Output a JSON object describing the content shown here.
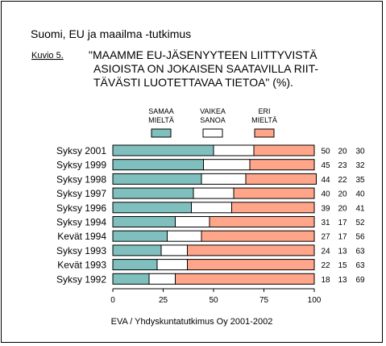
{
  "title": "Suomi, EU ja maailma -tutkimus",
  "figure_label": "Kuvio 5.",
  "heading_lines": [
    "\"MAAMME EU-JÄSENYYTEEN LIITTYVISTÄ",
    "ASIOISTA ON JOKAISEN SAATAVILLA RIIT-",
    "TÄVÄSTI LUOTETTAVAA TIETOA\" (%)."
  ],
  "source": "EVA / Yhdyskuntatutkimus Oy 2001-2002",
  "colors": {
    "agree": "#7fbfbe",
    "neutral": "#ffffff",
    "disagree": "#ffa58a"
  },
  "legend": [
    {
      "lines": [
        "SAMAA",
        "MIELTÄ"
      ],
      "color": "#7fbfbe"
    },
    {
      "lines": [
        "VAIKEA",
        "SANOA"
      ],
      "color": "#ffffff"
    },
    {
      "lines": [
        "ERI",
        "MIELTÄ"
      ],
      "color": "#ffa58a"
    }
  ],
  "chart_data": {
    "type": "bar",
    "orientation": "horizontal",
    "stacked": true,
    "categories": [
      "Syksy 2001",
      "Syksy 1999",
      "Syksy 1998",
      "Syksy 1997",
      "Syksy 1996",
      "Syksy 1994",
      "Kevät 1994",
      "Syksy 1993",
      "Kevät 1993",
      "Syksy 1992"
    ],
    "series": [
      {
        "name": "SAMAA MIELTÄ",
        "values": [
          50,
          45,
          44,
          40,
          39,
          31,
          27,
          24,
          22,
          18
        ]
      },
      {
        "name": "VAIKEA SANOA",
        "values": [
          20,
          23,
          22,
          20,
          20,
          17,
          17,
          13,
          15,
          13
        ]
      },
      {
        "name": "ERI MIELTÄ",
        "values": [
          30,
          32,
          35,
          40,
          41,
          52,
          56,
          63,
          63,
          69
        ]
      }
    ],
    "xlim": [
      0,
      100
    ],
    "xticks": [
      0,
      25,
      50,
      75,
      100
    ],
    "grid": false,
    "legend_position": "top"
  }
}
